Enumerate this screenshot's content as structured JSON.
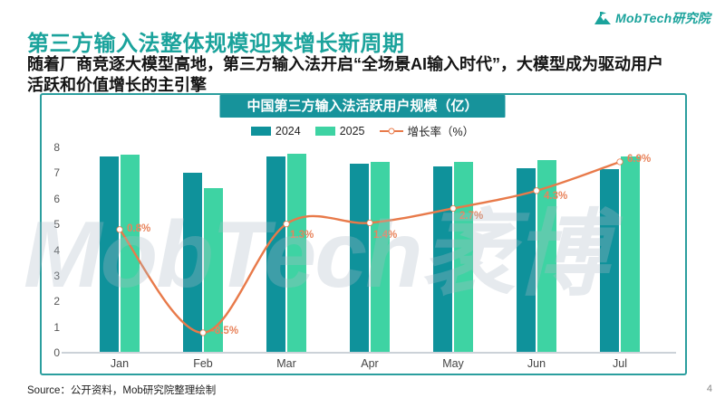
{
  "page": {
    "logo_text": "MobTech研究院",
    "heading": "第三方输入法整体规模迎来增长新周期",
    "subheading_line1": "随着厂商竞逐大模型高地，第三方输入法开启“全场景AI输入时代”，大模型成为驱动用户",
    "subheading_line2": "活跃和价值增长的主引擎",
    "watermark": "MobTech袤博",
    "source": "Source：公开资料，Mob研究院整理绘制",
    "page_number": "4"
  },
  "colors": {
    "brand_teal": "#1ba39c",
    "title_pill_bg": "#17939b",
    "bar_2024": "#0f929b",
    "bar_2025": "#3ed3a3",
    "growth_line": "#e87a4a",
    "panel_border": "#2b9e9e"
  },
  "chart_data": {
    "type": "bar",
    "title": "中国第三方输入法活跃用户规模（亿）",
    "categories": [
      "Jan",
      "Feb",
      "Mar",
      "Apr",
      "May",
      "Jun",
      "Jul"
    ],
    "series": [
      {
        "name": "2024",
        "type": "bar",
        "color": "#0f929b",
        "values": [
          7.65,
          7.0,
          7.65,
          7.35,
          7.25,
          7.2,
          7.15
        ]
      },
      {
        "name": "2025",
        "type": "bar",
        "color": "#3ed3a3",
        "values": [
          7.71,
          6.4,
          7.75,
          7.45,
          7.45,
          7.5,
          7.64
        ]
      },
      {
        "name": "增长率（%）",
        "type": "line",
        "color": "#e87a4a",
        "values": [
          0.8,
          -8.5,
          1.3,
          1.4,
          2.7,
          4.3,
          6.9
        ],
        "labels": [
          "0.8%",
          "-8.5%",
          "1.3%",
          "1.4%",
          "2.7%",
          "4.3%",
          "6.9%"
        ]
      }
    ],
    "y_axis": {
      "min": 0,
      "max": 8,
      "step": 1
    },
    "secondary_axis": {
      "min": -10.3,
      "max": 8.2,
      "visible": false
    },
    "xlabel": "",
    "ylabel": "",
    "grid": false,
    "legend_position": "top"
  }
}
